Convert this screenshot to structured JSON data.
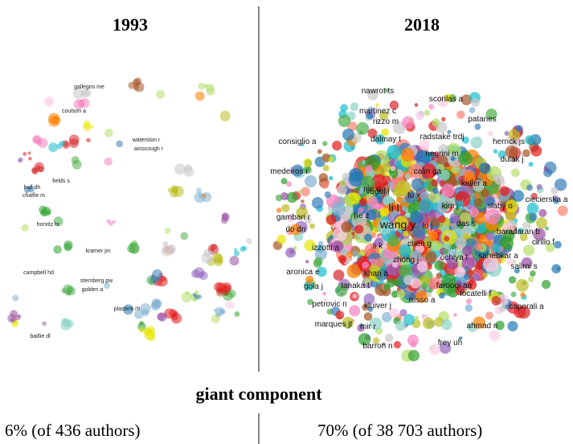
{
  "left": {
    "title": "1993",
    "caption": "6% (of 436 authors)",
    "labels": [
      "gallegos me",
      "waterston r",
      "ainscough r",
      "fields s",
      "horvitz hr",
      "campbell hd",
      "kramer jm",
      "sternberg pw",
      "golden a",
      "plasterk rh",
      "coulson a",
      "hall dh",
      "chalfie m",
      "baillie dl"
    ]
  },
  "right": {
    "title": "2018",
    "caption": "70% (of 38 703 authors)",
    "labels": [
      "nawrot ts",
      "scorilas a",
      "martinez c",
      "rizzo m",
      "patanes",
      "consiglio a",
      "dalmay t",
      "radstake trdj",
      "negrini m",
      "herrick js",
      "dulak j",
      "medeiros r",
      "calin ga",
      "vogel j",
      "keller a",
      "nie q",
      "fu x",
      "ciecierska a",
      "li l",
      "kim j",
      "slaby o",
      "he z",
      "wang y",
      "lu j",
      "das s",
      "baradaran b",
      "gambari r",
      "do dn",
      "cirillo f",
      "izzotti a",
      "chen g",
      "li k",
      "sahebkar a",
      "zhong j",
      "ochiya t",
      "salimi s",
      "aronica e",
      "khan a",
      "farooqi aa",
      "gola j",
      "tanaka t",
      "locatelli f",
      "petrovic n",
      "russo a",
      "kluiver j",
      "caporali a",
      "marques jt",
      "mir r",
      "ahmad n",
      "barron n",
      "frey uh"
    ]
  },
  "center_label": "giant component"
}
